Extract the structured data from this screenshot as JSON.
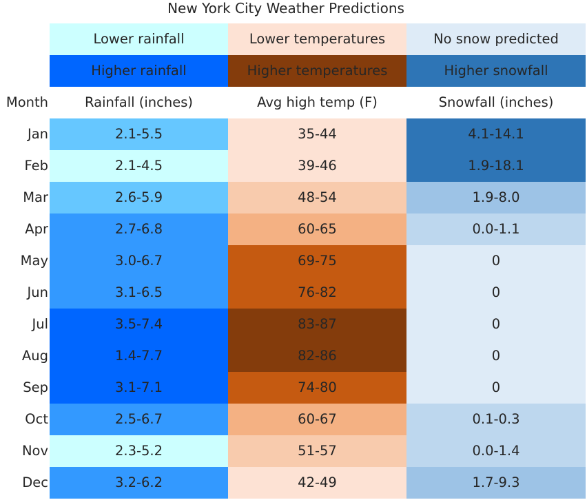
{
  "chart_data": {
    "type": "table",
    "title": "New York City Weather Predictions",
    "legend": {
      "rainfall": {
        "low_label": "Lower rainfall",
        "low_color": "#ccffff",
        "high_label": "Higher rainfall",
        "high_color": "#0066ff"
      },
      "temperature": {
        "low_label": "Lower temperatures",
        "low_color": "#fde2d4",
        "high_label": "Higher temperatures",
        "high_color": "#843c0c"
      },
      "snowfall": {
        "low_label": "No snow predicted",
        "low_color": "#deebf7",
        "high_label": "Higher snowfall",
        "high_color": "#2e75b6"
      }
    },
    "columns": [
      "Month",
      "Rainfall (inches)",
      "Avg high temp (F)",
      "Snowfall (inches)"
    ],
    "rows": [
      {
        "month": "Jan",
        "rainfall": "2.1-5.5",
        "rain_color": "#66c7ff",
        "temp": "35-44",
        "temp_color": "#fde2d4",
        "snow": "4.1-14.1",
        "snow_color": "#2e75b6"
      },
      {
        "month": "Feb",
        "rainfall": "2.1-4.5",
        "rain_color": "#ccffff",
        "temp": "39-46",
        "temp_color": "#fde2d4",
        "snow": "1.9-18.1",
        "snow_color": "#2e75b6"
      },
      {
        "month": "Mar",
        "rainfall": "2.6-5.9",
        "rain_color": "#66c7ff",
        "temp": "48-54",
        "temp_color": "#f8cbad",
        "snow": "1.9-8.0",
        "snow_color": "#9dc3e6"
      },
      {
        "month": "Apr",
        "rainfall": "2.7-6.8",
        "rain_color": "#3399ff",
        "temp": "60-65",
        "temp_color": "#f4b183",
        "snow": "0.0-1.1",
        "snow_color": "#bdd7ee"
      },
      {
        "month": "May",
        "rainfall": "3.0-6.7",
        "rain_color": "#3399ff",
        "temp": "69-75",
        "temp_color": "#c55a11",
        "snow": "0",
        "snow_color": "#deebf7"
      },
      {
        "month": "Jun",
        "rainfall": "3.1-6.5",
        "rain_color": "#3399ff",
        "temp": "76-82",
        "temp_color": "#c55a11",
        "snow": "0",
        "snow_color": "#deebf7"
      },
      {
        "month": "Jul",
        "rainfall": "3.5-7.4",
        "rain_color": "#0066ff",
        "temp": "83-87",
        "temp_color": "#843c0c",
        "snow": "0",
        "snow_color": "#deebf7"
      },
      {
        "month": "Aug",
        "rainfall": "1.4-7.7",
        "rain_color": "#0066ff",
        "temp": "82-86",
        "temp_color": "#843c0c",
        "snow": "0",
        "snow_color": "#deebf7"
      },
      {
        "month": "Sep",
        "rainfall": "3.1-7.1",
        "rain_color": "#0066ff",
        "temp": "74-80",
        "temp_color": "#c55a11",
        "snow": "0",
        "snow_color": "#deebf7"
      },
      {
        "month": "Oct",
        "rainfall": "2.5-6.7",
        "rain_color": "#3399ff",
        "temp": "60-67",
        "temp_color": "#f4b183",
        "snow": "0.1-0.3",
        "snow_color": "#bdd7ee"
      },
      {
        "month": "Nov",
        "rainfall": "2.3-5.2",
        "rain_color": "#ccffff",
        "temp": "51-57",
        "temp_color": "#f8cbad",
        "snow": "0.0-1.4",
        "snow_color": "#bdd7ee"
      },
      {
        "month": "Dec",
        "rainfall": "3.2-6.2",
        "rain_color": "#3399ff",
        "temp": "42-49",
        "temp_color": "#fde2d4",
        "snow": "1.7-9.3",
        "snow_color": "#9dc3e6"
      }
    ]
  }
}
